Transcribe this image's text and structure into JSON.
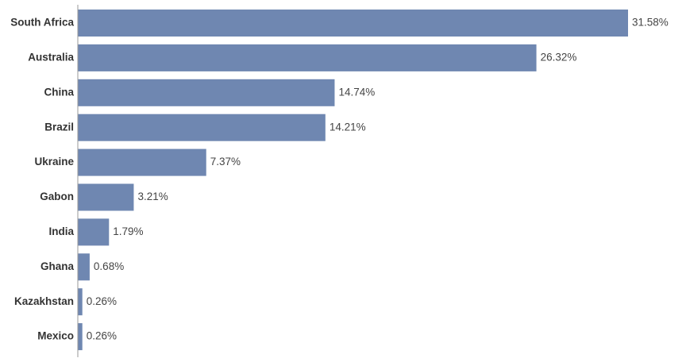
{
  "chart_data": {
    "type": "bar",
    "orientation": "horizontal",
    "categories": [
      "South Africa",
      "Australia",
      "China",
      "Brazil",
      "Ukraine",
      "Gabon",
      "India",
      "Ghana",
      "Kazakhstan",
      "Mexico"
    ],
    "values": [
      31.58,
      26.32,
      14.74,
      14.21,
      7.37,
      3.21,
      1.79,
      0.68,
      0.26,
      0.26
    ],
    "value_labels": [
      "31.58%",
      "26.32%",
      "14.74%",
      "14.21%",
      "7.37%",
      "3.21%",
      "1.79%",
      "0.68%",
      "0.26%",
      "0.26%"
    ],
    "bar_color": "#6f87b1",
    "axis_color": "#999999",
    "title": "",
    "xlabel": "",
    "ylabel": "",
    "xlim": [
      0,
      31.58
    ],
    "grid": false,
    "legend": "none"
  }
}
